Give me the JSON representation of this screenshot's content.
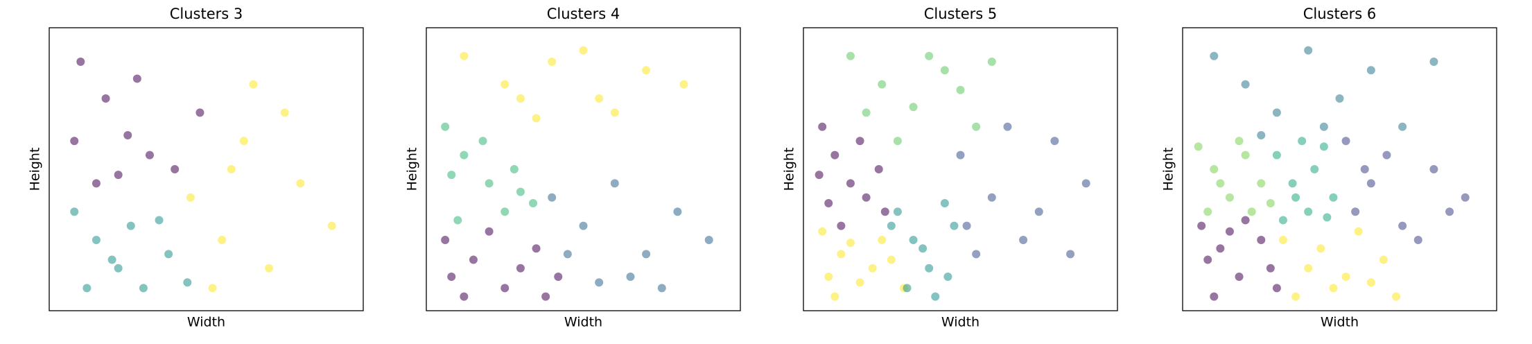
{
  "chart_data": [
    {
      "type": "scatter",
      "title": "Clusters 3",
      "x_label": "Width",
      "y_label": "Height",
      "xlim": [
        0,
        100
      ],
      "ylim": [
        0,
        100
      ],
      "series": [
        {
          "color": "#440154",
          "x": [
            10,
            18,
            25,
            32,
            40,
            48,
            15,
            28,
            22,
            8
          ],
          "y": [
            88,
            75,
            62,
            55,
            50,
            70,
            45,
            82,
            48,
            60
          ]
        },
        {
          "color": "#21918c",
          "x": [
            8,
            15,
            22,
            30,
            38,
            44,
            12,
            26,
            35,
            20
          ],
          "y": [
            35,
            25,
            15,
            8,
            20,
            10,
            8,
            30,
            32,
            18
          ]
        },
        {
          "color": "#fde725",
          "x": [
            45,
            55,
            62,
            70,
            80,
            90,
            52,
            65,
            75,
            58
          ],
          "y": [
            40,
            25,
            60,
            15,
            45,
            30,
            8,
            80,
            70,
            50
          ]
        }
      ]
    },
    {
      "type": "scatter",
      "title": "Clusters 4",
      "x_label": "Width",
      "y_label": "Height",
      "xlim": [
        0,
        100
      ],
      "ylim": [
        0,
        100
      ],
      "series": [
        {
          "color": "#fde725",
          "x": [
            12,
            25,
            40,
            55,
            70,
            82,
            35,
            50,
            30,
            60
          ],
          "y": [
            90,
            80,
            88,
            75,
            85,
            80,
            68,
            92,
            75,
            70
          ]
        },
        {
          "color": "#35b779",
          "x": [
            6,
            12,
            20,
            28,
            34,
            10,
            18,
            25,
            8,
            30
          ],
          "y": [
            65,
            55,
            45,
            50,
            38,
            32,
            60,
            35,
            48,
            42
          ]
        },
        {
          "color": "#440154",
          "x": [
            6,
            15,
            25,
            35,
            42,
            12,
            20,
            30,
            38,
            8
          ],
          "y": [
            25,
            18,
            8,
            22,
            12,
            5,
            28,
            15,
            5,
            12
          ]
        },
        {
          "color": "#31688e",
          "x": [
            40,
            50,
            60,
            70,
            80,
            90,
            55,
            65,
            75,
            45
          ],
          "y": [
            40,
            30,
            45,
            20,
            35,
            25,
            10,
            12,
            8,
            20
          ]
        }
      ]
    },
    {
      "type": "scatter",
      "title": "Clusters 5",
      "x_label": "Width",
      "y_label": "Height",
      "xlim": [
        0,
        100
      ],
      "ylim": [
        0,
        100
      ],
      "series": [
        {
          "color": "#5ec962",
          "x": [
            15,
            25,
            35,
            45,
            55,
            30,
            40,
            20,
            50,
            60
          ],
          "y": [
            90,
            80,
            72,
            85,
            65,
            60,
            90,
            70,
            78,
            88
          ]
        },
        {
          "color": "#440154",
          "x": [
            6,
            10,
            15,
            20,
            26,
            8,
            18,
            12,
            24,
            5
          ],
          "y": [
            65,
            55,
            45,
            40,
            35,
            38,
            60,
            30,
            50,
            48
          ]
        },
        {
          "color": "#fde725",
          "x": [
            6,
            12,
            18,
            25,
            32,
            10,
            22,
            28,
            8,
            15
          ],
          "y": [
            28,
            20,
            10,
            25,
            8,
            5,
            15,
            18,
            12,
            24
          ]
        },
        {
          "color": "#21918c",
          "x": [
            30,
            35,
            40,
            45,
            48,
            33,
            42,
            38,
            28,
            46
          ],
          "y": [
            35,
            25,
            15,
            38,
            30,
            8,
            5,
            22,
            30,
            12
          ]
        },
        {
          "color": "#3b528b",
          "x": [
            50,
            60,
            70,
            80,
            90,
            55,
            65,
            75,
            52,
            85
          ],
          "y": [
            55,
            40,
            25,
            60,
            45,
            20,
            65,
            35,
            30,
            20
          ]
        }
      ]
    },
    {
      "type": "scatter",
      "title": "Clusters 6",
      "x_label": "Width",
      "y_label": "Height",
      "xlim": [
        0,
        100
      ],
      "ylim": [
        0,
        100
      ],
      "series": [
        {
          "color": "#2a788e",
          "x": [
            10,
            20,
            30,
            40,
            50,
            60,
            70,
            80,
            25,
            45
          ],
          "y": [
            90,
            80,
            70,
            92,
            75,
            85,
            65,
            88,
            62,
            65
          ]
        },
        {
          "color": "#7ad151",
          "x": [
            5,
            10,
            15,
            20,
            25,
            28,
            8,
            18,
            12,
            22
          ],
          "y": [
            58,
            50,
            40,
            55,
            45,
            38,
            35,
            60,
            45,
            35
          ]
        },
        {
          "color": "#22a884",
          "x": [
            30,
            35,
            40,
            45,
            48,
            32,
            42,
            38,
            36,
            46
          ],
          "y": [
            55,
            45,
            35,
            58,
            40,
            32,
            50,
            60,
            40,
            33
          ]
        },
        {
          "color": "#414487",
          "x": [
            52,
            60,
            70,
            80,
            90,
            55,
            65,
            75,
            85,
            58
          ],
          "y": [
            60,
            45,
            30,
            50,
            40,
            35,
            55,
            25,
            35,
            50
          ]
        },
        {
          "color": "#440154",
          "x": [
            6,
            12,
            18,
            25,
            30,
            10,
            20,
            28,
            8,
            15
          ],
          "y": [
            30,
            22,
            12,
            25,
            8,
            5,
            32,
            15,
            18,
            28
          ]
        },
        {
          "color": "#fde725",
          "x": [
            32,
            40,
            48,
            56,
            64,
            36,
            44,
            52,
            60,
            68
          ],
          "y": [
            25,
            15,
            8,
            28,
            18,
            5,
            22,
            12,
            10,
            5
          ]
        }
      ]
    }
  ]
}
